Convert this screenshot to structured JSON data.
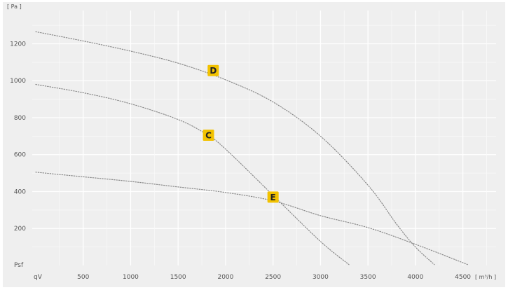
{
  "chart_data": {
    "type": "line",
    "title": "",
    "ylabel": "[ Pa ]",
    "xlabel": "[ m³/h ]",
    "y_origin_label": "Psf",
    "x_origin_label": "qV",
    "xlim": [
      0,
      4850
    ],
    "ylim": [
      0,
      1380
    ],
    "x_ticks": [
      500,
      1000,
      1500,
      2000,
      2500,
      3000,
      3500,
      4000,
      4500
    ],
    "y_ticks": [
      200,
      400,
      600,
      800,
      1000,
      1200
    ],
    "grid": true,
    "badge_color": "#f2c200",
    "curve_color": "#8a8a8a",
    "series": [
      {
        "name": "D",
        "x": [
          0,
          500,
          1000,
          1500,
          2000,
          2500,
          3000,
          3500,
          3800,
          4000,
          4200
        ],
        "values": [
          1265,
          1215,
          1160,
          1095,
          1005,
          885,
          700,
          435,
          225,
          100,
          5
        ],
        "label_at": [
          1870,
          1055
        ]
      },
      {
        "name": "C",
        "x": [
          0,
          500,
          1000,
          1500,
          1800,
          2000,
          2500,
          3000,
          3300
        ],
        "values": [
          980,
          935,
          875,
          790,
          710,
          630,
          380,
          130,
          5
        ],
        "label_at": [
          1820,
          705
        ]
      },
      {
        "name": "E",
        "x": [
          0,
          500,
          1000,
          1500,
          2000,
          2500,
          3000,
          3500,
          4000,
          4550
        ],
        "values": [
          505,
          480,
          455,
          425,
          395,
          350,
          270,
          205,
          115,
          5
        ],
        "label_at": [
          2500,
          370
        ]
      }
    ]
  }
}
